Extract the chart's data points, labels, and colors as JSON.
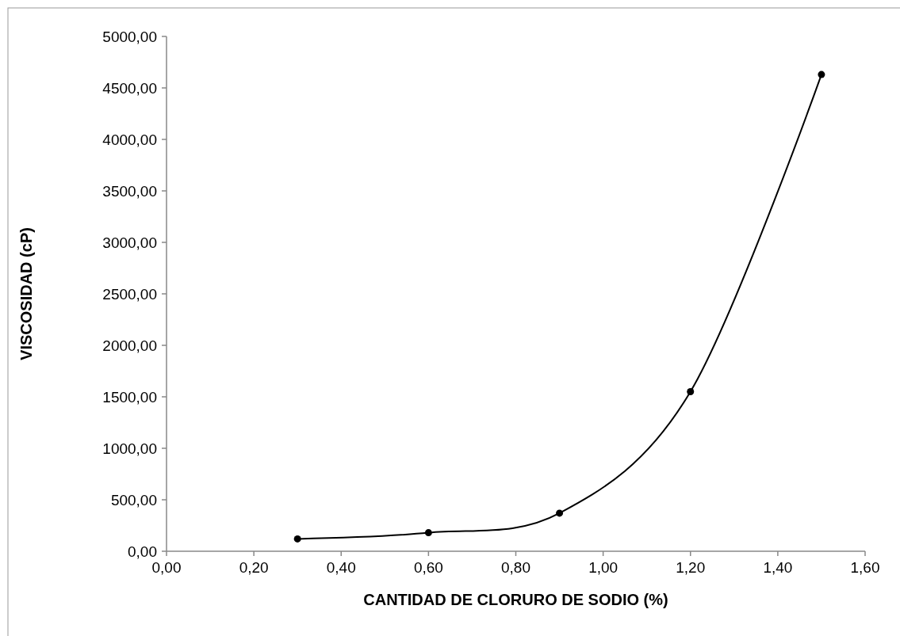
{
  "chart_data": {
    "type": "line",
    "xlabel": "CANTIDAD DE CLORURO DE SODIO (%)",
    "ylabel": "VISCOSIDAD (cP)",
    "x": [
      0.3,
      0.6,
      0.9,
      1.2,
      1.5
    ],
    "series": [
      {
        "color": "#000000",
        "values": [
          120,
          180,
          370,
          1550,
          4630
        ]
      }
    ],
    "xlim": [
      0,
      1.6
    ],
    "xticks": [
      {
        "value": 0,
        "label": "0,00"
      },
      {
        "value": 0.2,
        "label": "0,20"
      },
      {
        "value": 0.4,
        "label": "0,40"
      },
      {
        "value": 0.6,
        "label": "0,60"
      },
      {
        "value": 0.8,
        "label": "0,80"
      },
      {
        "value": 1,
        "label": "1,00"
      },
      {
        "value": 1.2,
        "label": "1,20"
      },
      {
        "value": 1.4,
        "label": "1,40"
      },
      {
        "value": 1.6,
        "label": "1,60"
      }
    ],
    "ylim": [
      0,
      5000
    ],
    "yticks": [
      {
        "value": 0,
        "label": "0,00"
      },
      {
        "value": 500,
        "label": "500,00"
      },
      {
        "value": 1000,
        "label": "1000,00"
      },
      {
        "value": 1500,
        "label": "1500,00"
      },
      {
        "value": 2000,
        "label": "2000,00"
      },
      {
        "value": 2500,
        "label": "2500,00"
      },
      {
        "value": 3000,
        "label": "3000,00"
      },
      {
        "value": 3500,
        "label": "3500,00"
      },
      {
        "value": 4000,
        "label": "4000,00"
      },
      {
        "value": 4500,
        "label": "4500,00"
      },
      {
        "value": 5000,
        "label": "5000,00"
      }
    ],
    "grid": false,
    "marker": "circle",
    "line_style": "solid"
  }
}
